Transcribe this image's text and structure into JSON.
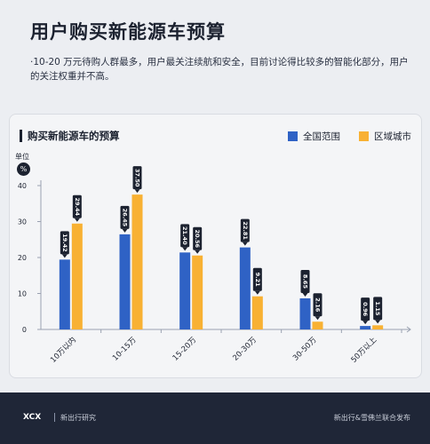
{
  "header": {
    "title": "用户购买新能源车预算",
    "description": "·10-20 万元待购人群最多，用户最关注续航和安全，目前讨论得比较多的智能化部分，用户的关注权重并不高。"
  },
  "panel": {
    "title": "购买新能源车的预算",
    "unit_label": "单位",
    "unit_symbol": "%"
  },
  "colors": {
    "series_1": "#2f62c5",
    "series_2": "#f8b133"
  },
  "chart_data": {
    "type": "bar",
    "title": "购买新能源车的预算",
    "ylabel": "%",
    "ylim": [
      0,
      40
    ],
    "yticks": [
      0,
      10,
      20,
      30,
      40
    ],
    "categories": [
      "10万以内",
      "10-15万",
      "15-20万",
      "20-30万",
      "30-50万",
      "50万以上"
    ],
    "series": [
      {
        "name": "全国范围",
        "values": [
          19.42,
          26.45,
          21.4,
          22.81,
          8.65,
          0.96
        ],
        "labels": [
          "19.42",
          "26.45",
          "21.40",
          "22.81",
          "8.65",
          "0.96"
        ]
      },
      {
        "name": "区域城市",
        "values": [
          29.44,
          37.5,
          20.56,
          9.21,
          2.16,
          1.15
        ],
        "labels": [
          "29.44",
          "37.50",
          "20.56",
          "9.21",
          "2.16",
          "1.15"
        ]
      }
    ],
    "legend_position": "top-right",
    "grid": false
  },
  "footer": {
    "logo": "XCX",
    "brand": "新出行研究",
    "publisher": "新出行&雪佛兰联合发布"
  }
}
